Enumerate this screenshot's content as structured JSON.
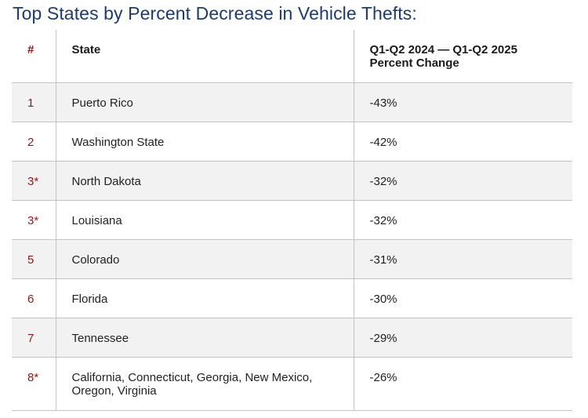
{
  "title": "Top States by Percent Decrease in Vehicle Thefts:",
  "header": {
    "rank": "#",
    "state": "State",
    "change_line1": "Q1-Q2 2024 — Q1-Q2 2025",
    "change_line2": "Percent Change"
  },
  "rows": [
    {
      "rank": "1",
      "state": "Puerto Rico",
      "change": "-43%"
    },
    {
      "rank": "2",
      "state": "Washington State",
      "change": "-42%"
    },
    {
      "rank": "3*",
      "state": "North Dakota",
      "change": "-32%"
    },
    {
      "rank": "3*",
      "state": "Louisiana",
      "change": "-32%"
    },
    {
      "rank": "5",
      "state": "Colorado",
      "change": "-31%"
    },
    {
      "rank": "6",
      "state": "Florida",
      "change": "-30%"
    },
    {
      "rank": "7",
      "state": "Tennessee",
      "change": "-29%"
    },
    {
      "rank": "8*",
      "state": "California, Connecticut, Georgia, New Mexico, Oregon, Virginia",
      "change": "-26%"
    }
  ],
  "colors": {
    "title": "#1c3b6e",
    "rank": "#8b1a1a",
    "shade": "#f2f2f2",
    "rule": "#c4c4c4"
  }
}
